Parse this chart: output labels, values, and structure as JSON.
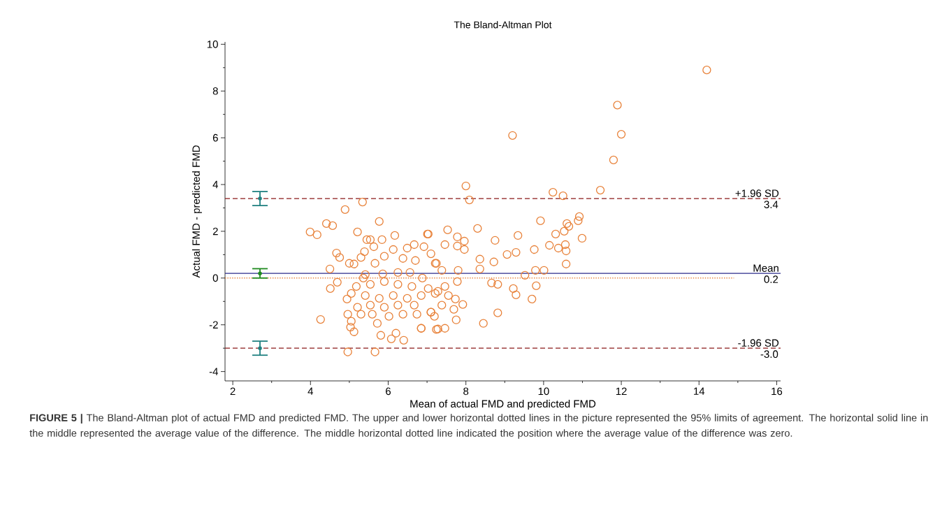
{
  "chart_data": {
    "type": "scatter",
    "title": "The Bland-Altman Plot",
    "xlabel": "Mean of actual FMD and predicted FMD",
    "ylabel": "Actual FMD - predicted FMD",
    "xlim": [
      1.8,
      16.1
    ],
    "ylim": [
      -4.4,
      10.1
    ],
    "xticks": [
      2,
      4,
      6,
      8,
      10,
      12,
      14,
      16
    ],
    "yticks": [
      -4,
      -2,
      0,
      2,
      4,
      6,
      8,
      10
    ],
    "marker": "circle",
    "series": [
      {
        "color": "#e8823a",
        "x": [
          14.2,
          11.9,
          12.0,
          9.2,
          11.8,
          3.99,
          4.17,
          4.41,
          4.57,
          4.89,
          5.34,
          5.21,
          5.77,
          6.17,
          7.01,
          4.67,
          4.75,
          4.5,
          4.69,
          4.51,
          4.26,
          4.94,
          4.96,
          5.03,
          5.12,
          4.96,
          5.66,
          5.81,
          6.08,
          6.4,
          6.2,
          6.85,
          7.24,
          5.54,
          5.84,
          5.45,
          5.0,
          5.12,
          5.3,
          5.39,
          5.63,
          5.9,
          6.13,
          6.49,
          6.67,
          6.92,
          7.1,
          7.21,
          6.7,
          6.38,
          5.66,
          5.41,
          5.86,
          6.25,
          6.56,
          6.88,
          5.36,
          5.18,
          5.54,
          5.9,
          6.25,
          6.61,
          7.03,
          5.05,
          5.41,
          5.77,
          6.13,
          6.49,
          6.85,
          7.21,
          5.21,
          5.54,
          5.9,
          6.25,
          6.67,
          7.1,
          5.59,
          6.02,
          6.38,
          6.74,
          5.05,
          5.72,
          5.3,
          8.0,
          8.09,
          10.24,
          10.5,
          11.46,
          9.92,
          10.92,
          10.89,
          10.6,
          10.65,
          10.53,
          10.31,
          10.99,
          10.15,
          10.38,
          10.56,
          10.58,
          10.58,
          9.34,
          9.29,
          9.06,
          9.76,
          8.75,
          8.3,
          8.36,
          8.36,
          8.72,
          9.79,
          10.01,
          9.52,
          8.66,
          8.82,
          9.22,
          9.29,
          9.81,
          9.7,
          8.82,
          8.45,
          7.53,
          7.03,
          7.78,
          7.96,
          7.46,
          7.96,
          7.78,
          7.24,
          7.38,
          7.8,
          7.78,
          7.46,
          7.28,
          7.55,
          7.73,
          7.92,
          7.38,
          7.69,
          7.1,
          7.19,
          7.75,
          7.46,
          7.28,
          6.85
        ],
        "values": [
          8.9,
          7.4,
          6.15,
          6.1,
          5.05,
          1.97,
          1.85,
          2.33,
          2.24,
          2.93,
          3.25,
          1.97,
          2.42,
          1.82,
          1.88,
          1.07,
          0.88,
          0.39,
          -0.18,
          -0.45,
          -1.77,
          -0.9,
          -1.55,
          -2.1,
          -2.3,
          -3.16,
          -3.16,
          -2.45,
          -2.6,
          -2.66,
          -2.36,
          -2.15,
          -2.2,
          1.64,
          1.64,
          1.64,
          0.63,
          0.6,
          0.88,
          1.13,
          1.34,
          0.93,
          1.22,
          1.28,
          1.43,
          1.34,
          1.04,
          0.63,
          0.75,
          0.84,
          0.63,
          0.15,
          0.18,
          0.24,
          0.24,
          0.0,
          0.0,
          -0.36,
          -0.27,
          -0.15,
          -0.27,
          -0.36,
          -0.45,
          -0.66,
          -0.75,
          -0.87,
          -0.75,
          -0.87,
          -0.75,
          -0.66,
          -1.25,
          -1.16,
          -1.25,
          -1.16,
          -1.16,
          -1.46,
          -1.55,
          -1.64,
          -1.55,
          -1.55,
          -1.85,
          -1.94,
          -1.55,
          3.94,
          3.34,
          3.67,
          3.52,
          3.76,
          2.45,
          2.63,
          2.45,
          2.33,
          2.21,
          2.0,
          1.88,
          1.7,
          1.4,
          1.28,
          1.43,
          1.16,
          0.6,
          1.82,
          1.1,
          1.01,
          1.22,
          1.61,
          2.12,
          0.81,
          0.39,
          0.69,
          0.33,
          0.33,
          0.12,
          -0.21,
          -0.27,
          -0.45,
          -0.72,
          -0.33,
          -0.9,
          -1.49,
          -1.94,
          2.06,
          1.88,
          1.76,
          1.58,
          1.43,
          1.22,
          1.37,
          0.63,
          0.33,
          0.33,
          -0.15,
          -0.36,
          -0.57,
          -0.75,
          -0.9,
          -1.13,
          -1.16,
          -1.34,
          -1.46,
          -1.64,
          -1.79,
          -2.15,
          -2.18,
          -2.15
        ]
      },
      {
        "marker": "none",
        "x": [
          2.7,
          2.7,
          2.7
        ],
        "values": [
          3.4,
          0.2,
          -3.0
        ],
        "colors": [
          "#1f8080",
          "#1f8a1f",
          "#1f8080"
        ],
        "errors": [
          [
            3.1,
            3.7
          ],
          [
            0.0,
            0.4
          ],
          [
            -3.3,
            -2.7
          ]
        ]
      }
    ],
    "ref_lines": [
      {
        "axis": "y",
        "value": 3.4,
        "label": "+1.96 SD",
        "color": "#8b1a1a",
        "line_style": "dashed"
      },
      {
        "axis": "y",
        "value": 0.2,
        "label": "Mean",
        "color": "#2b2b8b",
        "line_style": "solid"
      },
      {
        "axis": "y",
        "value": 0,
        "color": "#e8823a",
        "line_style": "dotted"
      },
      {
        "axis": "y",
        "value": -3.0,
        "label": "-1.96 SD",
        "color": "#8b1a1a",
        "line_style": "dashed"
      }
    ],
    "annotations": [
      {
        "text": "3.4",
        "y": 3.4
      },
      {
        "text": "0.2",
        "y": 0.2
      },
      {
        "text": "-3.0",
        "y": -3.0
      },
      "**FIGURE 5 |** The Bland-Altman plot of actual FMD and predicted FMD. The upper and lower horizontal dotted lines in the picture represented the 95% limits of agreement. The horizontal solid line in the middle represented the average value of the difference. The middle horizontal dotted line indicated the position where the average value of the difference was zero."
    ]
  }
}
